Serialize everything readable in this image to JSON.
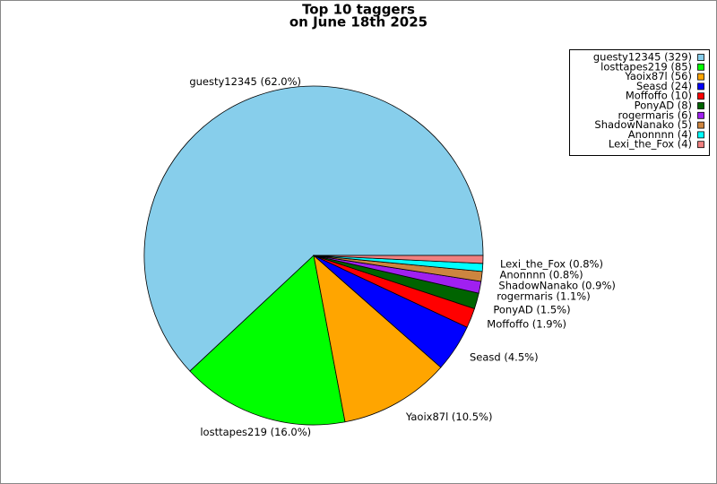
{
  "chart_data": {
    "type": "pie",
    "title": [
      "Top 10 taggers",
      "on June 18th 2025"
    ],
    "categories": [
      "guesty12345",
      "losttapes219",
      "Yaoix87l",
      "Seasd",
      "Moffoffo",
      "PonyAD",
      "rogermaris",
      "ShadowNanako",
      "Anonnnn",
      "Lexi_the_Fox"
    ],
    "values": [
      329,
      85,
      56,
      24,
      10,
      8,
      6,
      5,
      4,
      4
    ],
    "legend_labels": [
      "guesty12345 (329)",
      "losttapes219 (85)",
      "Yaoix87l (56)",
      "Seasd (24)",
      "Moffoffo (10)",
      "PonyAD (8)",
      "rogermaris (6)",
      "ShadowNanako (5)",
      "Anonnnn (4)",
      "Lexi_the_Fox (4)"
    ],
    "value_labels": [
      "guesty12345 (62.0%)",
      "losttapes219 (16.0%)",
      "Yaoix87l (10.5%)",
      "Seasd (4.5%)",
      "Moffoffo (1.9%)",
      "PonyAD (1.5%)",
      "rogermaris (1.1%)",
      "ShadowNanako (0.9%)",
      "Anonnnn (0.8%)",
      "Lexi_the_Fox (0.8%)"
    ],
    "colors": [
      "#87ceeb",
      "#00ff00",
      "#ffa500",
      "#0000ff",
      "#ff0000",
      "#006400",
      "#a020f0",
      "#cd853f",
      "#00ffff",
      "#f08080"
    ],
    "legend": "upper right"
  }
}
